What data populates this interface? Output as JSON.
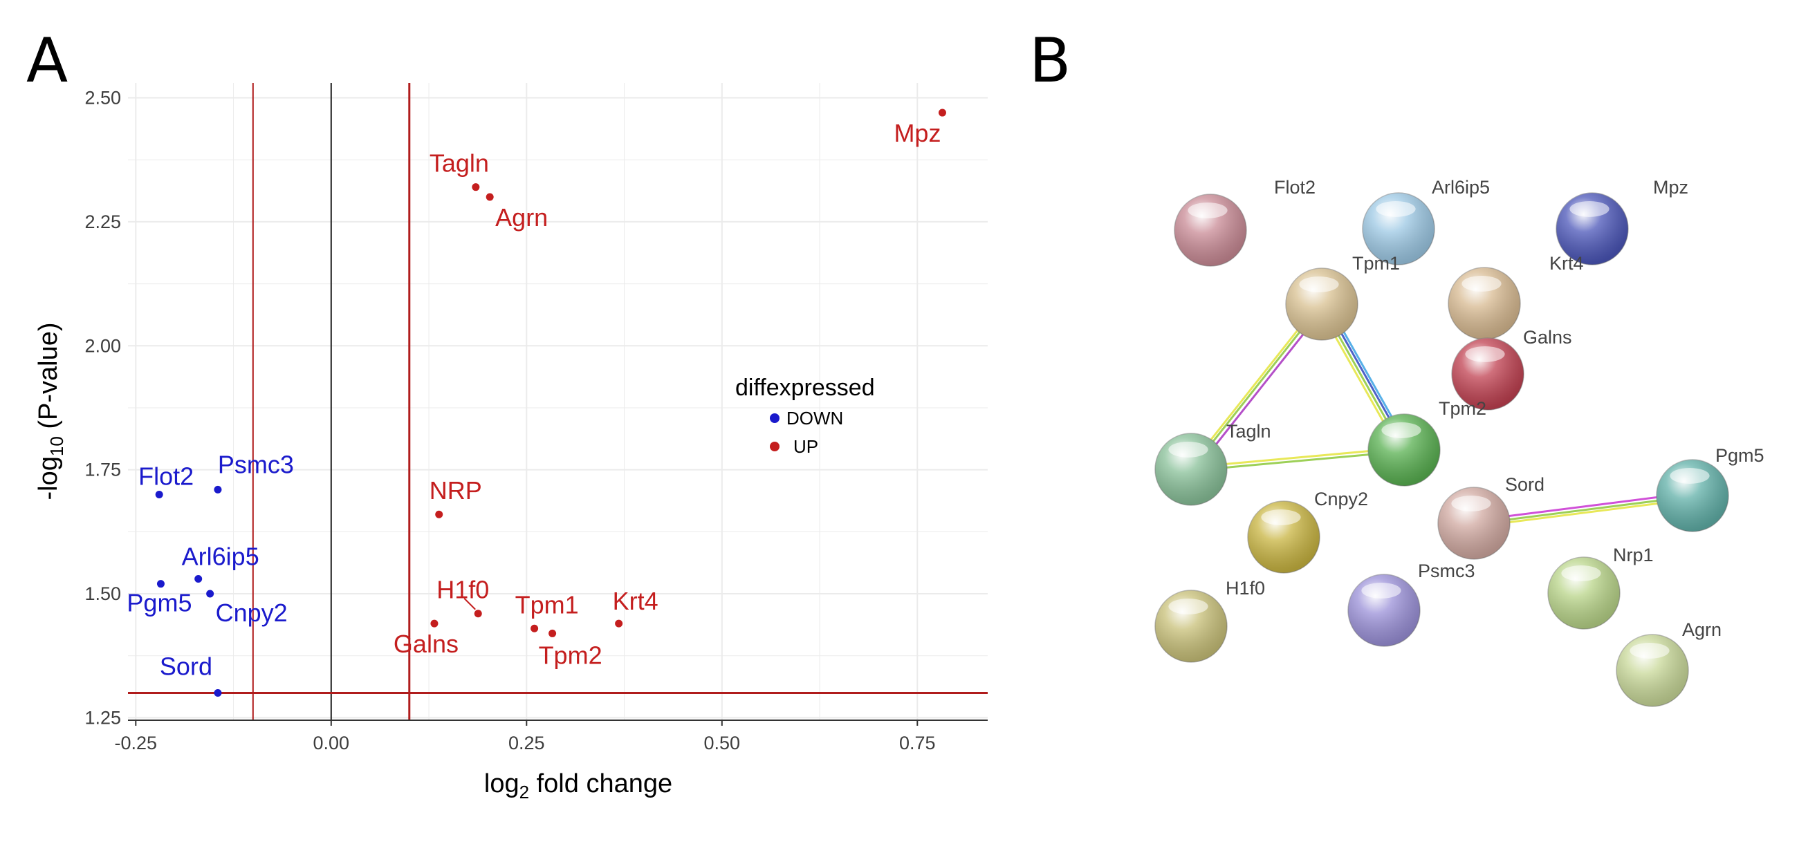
{
  "panels": {
    "a_letter": "A",
    "b_letter": "B"
  },
  "colors": {
    "down": "#1a1acc",
    "up": "#c41e1e",
    "threshold": "#b01c1c",
    "zero": "#222222",
    "grid": "#ebebeb"
  },
  "chart_data": [
    {
      "type": "scatter",
      "title": "",
      "xlabel_main": "log",
      "xlabel_sub": "2",
      "xlabel_rest": " fold change",
      "ylabel_main": "-log",
      "ylabel_sub": "10",
      "ylabel_rest": " (P-value)",
      "xlim": [
        -0.26,
        0.84
      ],
      "ylim": [
        1.245,
        2.53
      ],
      "x_ticks": [
        -0.25,
        0.0,
        0.25,
        0.5,
        0.75
      ],
      "x_tick_labels": [
        "-0.25",
        "0.00",
        "0.25",
        "0.50",
        "0.75"
      ],
      "y_ticks": [
        1.25,
        1.5,
        1.75,
        2.0,
        2.25,
        2.5
      ],
      "y_tick_labels": [
        "1.25",
        "1.50",
        "1.75",
        "2.00",
        "2.25",
        "2.50"
      ],
      "grid": true,
      "vlines": [
        -0.1,
        0.1
      ],
      "zero_line": 0.0,
      "hline": 1.3,
      "legend": {
        "title": "diffexpressed",
        "placement": "right",
        "entries": [
          "DOWN",
          "UP"
        ]
      },
      "series": [
        {
          "name": "DOWN",
          "points": [
            {
              "label": "Flot2",
              "x": -0.22,
              "y": 1.7
            },
            {
              "label": "Psmc3",
              "x": -0.145,
              "y": 1.71
            },
            {
              "label": "Arl6ip5",
              "x": -0.17,
              "y": 1.53
            },
            {
              "label": "Pgm5",
              "x": -0.218,
              "y": 1.52
            },
            {
              "label": "Cnpy2",
              "x": -0.155,
              "y": 1.5
            },
            {
              "label": "Sord",
              "x": -0.145,
              "y": 1.3
            }
          ]
        },
        {
          "name": "UP",
          "points": [
            {
              "label": "Mpz",
              "x": 0.782,
              "y": 2.47
            },
            {
              "label": "Tagln",
              "x": 0.185,
              "y": 2.32
            },
            {
              "label": "Agrn",
              "x": 0.203,
              "y": 2.3
            },
            {
              "label": "NRP",
              "x": 0.138,
              "y": 1.66
            },
            {
              "label": "H1f0",
              "x": 0.188,
              "y": 1.46
            },
            {
              "label": "Galns",
              "x": 0.132,
              "y": 1.44
            },
            {
              "label": "Tpm1",
              "x": 0.26,
              "y": 1.43
            },
            {
              "label": "Tpm2",
              "x": 0.283,
              "y": 1.42
            },
            {
              "label": "Krt4",
              "x": 0.368,
              "y": 1.44
            }
          ]
        }
      ]
    },
    {
      "type": "network",
      "nodes": [
        {
          "name": "Flot2",
          "color": "#c98a95"
        },
        {
          "name": "Arl6ip5",
          "color": "#9cc8e4"
        },
        {
          "name": "Mpz",
          "color": "#4a55b8"
        },
        {
          "name": "Tpm1",
          "color": "#d8c090"
        },
        {
          "name": "Krt4",
          "color": "#d7b990"
        },
        {
          "name": "Galns",
          "color": "#d7b990"
        },
        {
          "name": "Tpm2",
          "color": "#c04050"
        },
        {
          "name": "Tagln",
          "color": "#88c098"
        },
        {
          "name": "Cnpy2",
          "color": "#c8b440"
        },
        {
          "name": "Sord",
          "color": "#d0a8a0"
        },
        {
          "name": "Pgm5",
          "color": "#60b0a8"
        },
        {
          "name": "H1f0",
          "color": "#c8c078"
        },
        {
          "name": "Psmc3",
          "color": "#9a90d8"
        },
        {
          "name": "Nrp1",
          "color": "#b8d488"
        },
        {
          "name": "Agrn",
          "color": "#c8d898"
        },
        {
          "name": "center-node",
          "color": "#58b050"
        }
      ],
      "edges": [
        {
          "from": "Tpm1",
          "to": "Tagln"
        },
        {
          "from": "Tpm1",
          "to": "center-node"
        },
        {
          "from": "Tagln",
          "to": "center-node"
        },
        {
          "from": "Sord",
          "to": "Pgm5"
        }
      ]
    }
  ]
}
